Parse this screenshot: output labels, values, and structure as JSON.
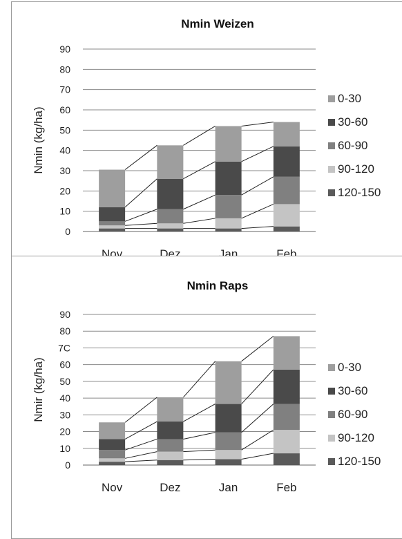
{
  "chart_data": [
    {
      "type": "bar",
      "stacked": true,
      "title": "Nmin Weizen",
      "ylabel": "Nmin (kg/ha)",
      "xlabel": "",
      "categories": [
        "Nov",
        "Dez",
        "Jan",
        "Feb"
      ],
      "ylim": [
        0,
        90
      ],
      "yticks": [
        0,
        10,
        20,
        30,
        40,
        50,
        60,
        70,
        80,
        90
      ],
      "tick_labels": [
        "0",
        "10",
        "20",
        "30",
        "40",
        "50",
        "60",
        "70",
        "80",
        "90"
      ],
      "grid": true,
      "legend_position": "right",
      "series": [
        {
          "name": "120-150",
          "color": "#5a5a5a",
          "values": [
            1.5,
            1.5,
            1.5,
            2.5
          ]
        },
        {
          "name": "90-120",
          "color": "#c4c4c4",
          "values": [
            1.5,
            2.5,
            5,
            11
          ]
        },
        {
          "name": "60-90",
          "color": "#808080",
          "values": [
            2,
            7,
            11.5,
            13.5
          ]
        },
        {
          "name": "30-60",
          "color": "#4a4a4a",
          "values": [
            7,
            15,
            16.5,
            15
          ]
        },
        {
          "name": "0-30",
          "color": "#9e9e9e",
          "values": [
            18.5,
            16.5,
            17.5,
            12
          ]
        }
      ]
    },
    {
      "type": "bar",
      "stacked": true,
      "title": "Nmin Raps",
      "ylabel": "Nmir (kg/ha)",
      "xlabel": "",
      "categories": [
        "Nov",
        "Dez",
        "Jan",
        "Feb"
      ],
      "ylim": [
        0,
        90
      ],
      "yticks": [
        0,
        10,
        20,
        30,
        40,
        50,
        60,
        70,
        80,
        90
      ],
      "tick_labels": [
        "0",
        "10",
        "20",
        "30",
        "40",
        "50",
        "60",
        "7C",
        "80",
        "90"
      ],
      "grid": true,
      "legend_position": "right",
      "series": [
        {
          "name": "120-150",
          "color": "#5a5a5a",
          "values": [
            2,
            3,
            3.5,
            7
          ]
        },
        {
          "name": "90-120",
          "color": "#c4c4c4",
          "values": [
            2,
            5,
            5.5,
            14
          ]
        },
        {
          "name": "60-90",
          "color": "#808080",
          "values": [
            5,
            7.5,
            10.5,
            15.5
          ]
        },
        {
          "name": "30-60",
          "color": "#4a4a4a",
          "values": [
            6.5,
            10.5,
            17,
            20.5
          ]
        },
        {
          "name": "0-30",
          "color": "#9e9e9e",
          "values": [
            10,
            14.5,
            25.5,
            20
          ]
        }
      ]
    }
  ]
}
